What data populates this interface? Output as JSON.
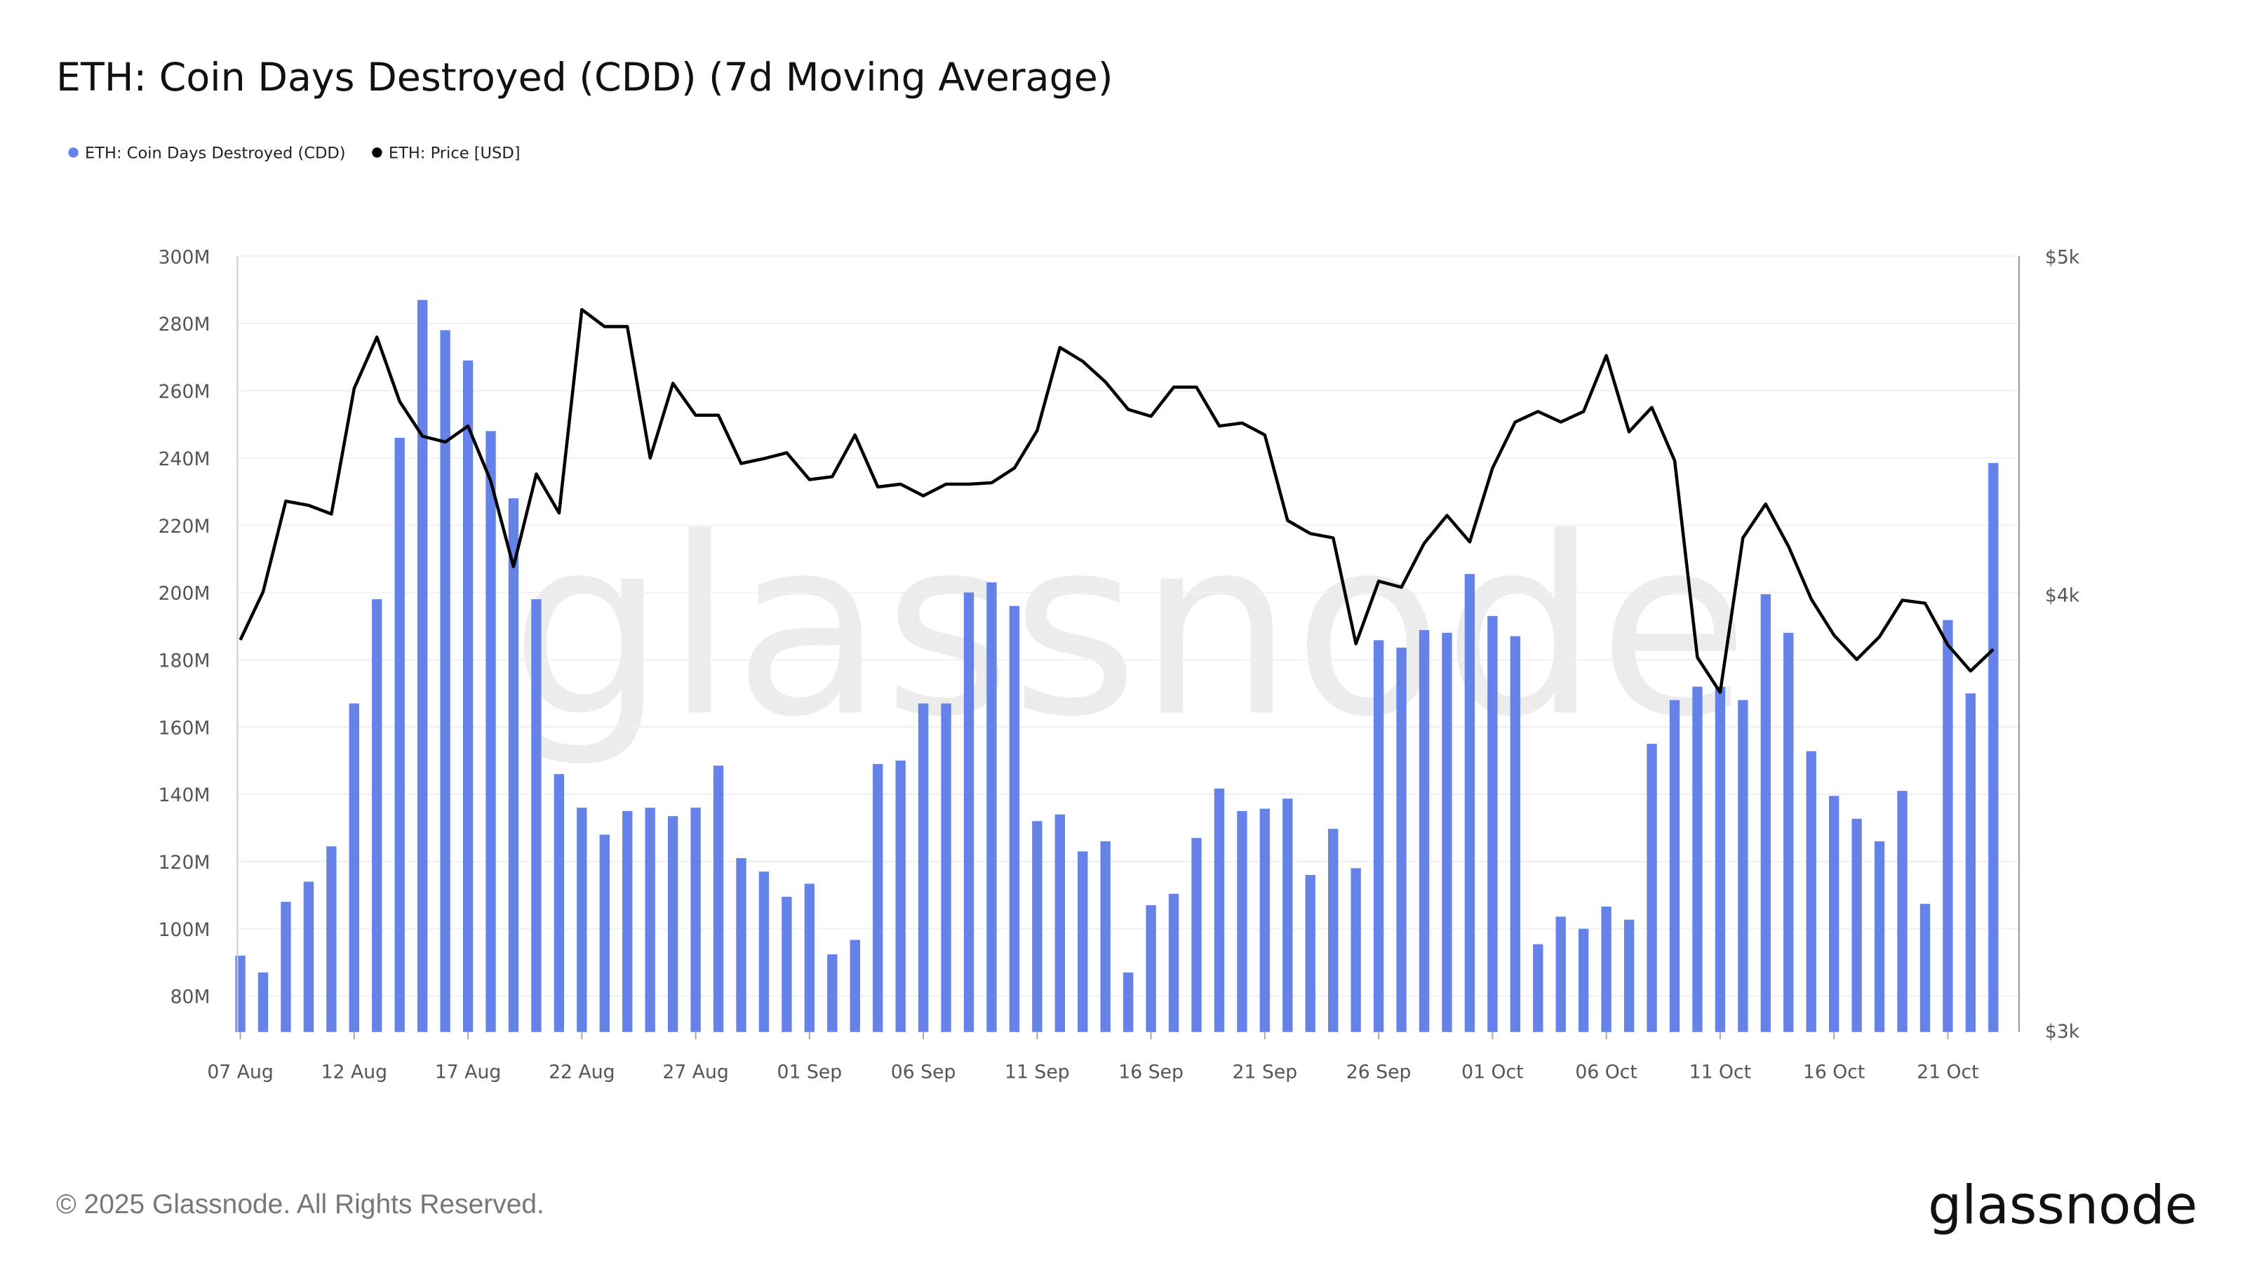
{
  "chart_data": {
    "type": "bar",
    "title": "ETH: Coin Days Destroyed (CDD) (7d Moving Average)",
    "legend_position": "top-left",
    "grid": true,
    "categories_start": "2025-08-07",
    "x_tick_labels": [
      "07 Aug",
      "12 Aug",
      "17 Aug",
      "22 Aug",
      "27 Aug",
      "01 Sep",
      "06 Sep",
      "11 Sep",
      "16 Sep",
      "21 Sep",
      "26 Sep",
      "01 Oct",
      "06 Oct",
      "11 Oct",
      "16 Oct",
      "21 Oct"
    ],
    "left_axis": {
      "ticks": [
        "80M",
        "100M",
        "120M",
        "140M",
        "160M",
        "180M",
        "200M",
        "220M",
        "240M",
        "260M",
        "280M",
        "300M"
      ],
      "range": [
        69.3,
        300
      ],
      "unit": "M"
    },
    "right_axis": {
      "ticks": [
        "$3k",
        "$4k",
        "$5k"
      ],
      "scale": "log",
      "range": [
        3000,
        5000
      ]
    },
    "series": [
      {
        "name": "ETH: Coin Days Destroyed (CDD)",
        "type": "bar",
        "color": "#6582e8",
        "unit": "M",
        "values": [
          92,
          87,
          108,
          114,
          124.5,
          167,
          198,
          246,
          287,
          278,
          269,
          248,
          228,
          198,
          146,
          136,
          128,
          135,
          136,
          133.5,
          136,
          148.5,
          121,
          117,
          109.5,
          113.4,
          92.4,
          96.7,
          149,
          150,
          167,
          167,
          200,
          203,
          196,
          132,
          134,
          123,
          126,
          87,
          107,
          110.4,
          127,
          141.7,
          135,
          135.7,
          138.7,
          116,
          129.7,
          118,
          185.8,
          183.6,
          188.8,
          188,
          205.5,
          193,
          187,
          95.4,
          103.6,
          100,
          106.6,
          102.7,
          155,
          168,
          172,
          172,
          168,
          199.5,
          188,
          152.8,
          139.5,
          132.7,
          126,
          141,
          107.4,
          191.8,
          170,
          238.5
        ]
      },
      {
        "name": "ETH: Price [USD]",
        "type": "line",
        "color": "#000000",
        "axis": "right",
        "values": [
          3882,
          4007,
          4254,
          4242,
          4218,
          4582,
          4740,
          4543,
          4440,
          4423,
          4470,
          4311,
          4074,
          4331,
          4221,
          4827,
          4773,
          4773,
          4377,
          4598,
          4502,
          4502,
          4361,
          4375,
          4392,
          4315,
          4323,
          4444,
          4294,
          4302,
          4269,
          4302,
          4302,
          4306,
          4348,
          4457,
          4708,
          4665,
          4602,
          4519,
          4499,
          4586,
          4586,
          4470,
          4479,
          4444,
          4200,
          4164,
          4152,
          3872,
          4035,
          4019,
          4137,
          4214,
          4141,
          4348,
          4482,
          4513,
          4482,
          4513,
          4683,
          4453,
          4525,
          4369,
          3837,
          3750,
          4152,
          4246,
          4129,
          3988,
          3894,
          3832,
          3890,
          3985,
          3977,
          3869,
          3803,
          3858
        ]
      }
    ]
  },
  "watermark": "glassnode",
  "footer": {
    "copyright": "© 2025 Glassnode. All Rights Reserved.",
    "logo": "glassnode"
  }
}
